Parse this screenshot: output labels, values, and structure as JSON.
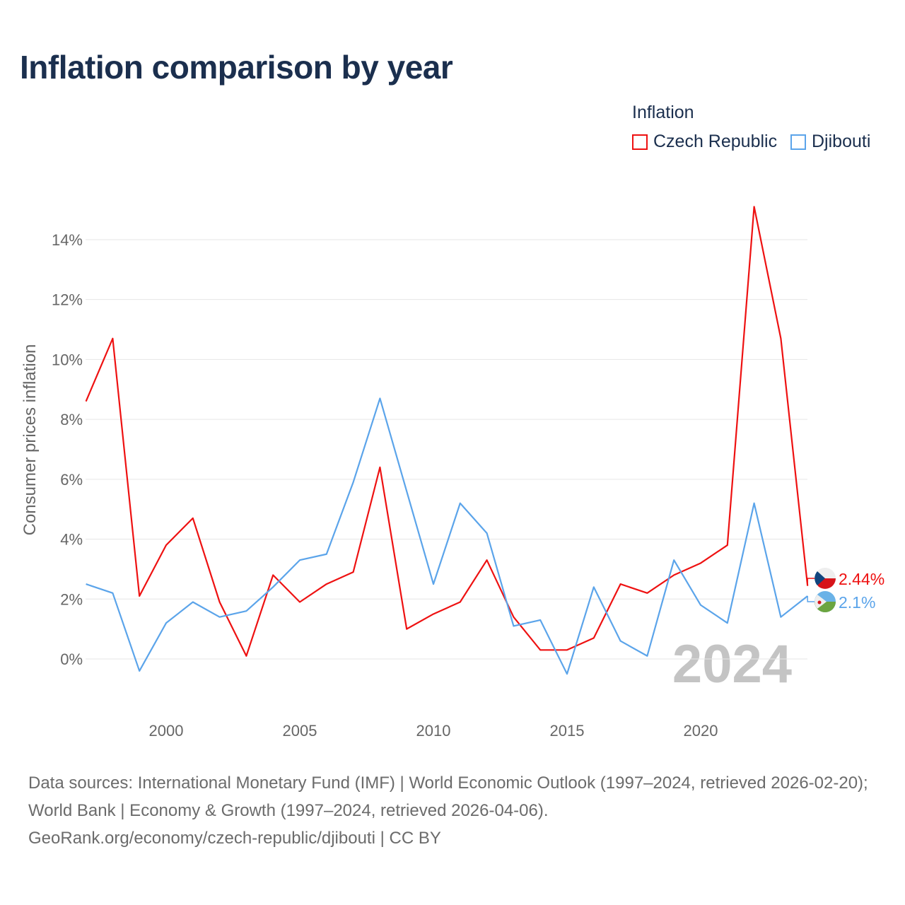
{
  "title": "Inflation comparison by year",
  "legend": {
    "title": "Inflation",
    "items": [
      {
        "label": "Czech Republic",
        "color": "#ee1111"
      },
      {
        "label": "Djibouti",
        "color": "#5ba4ea"
      }
    ]
  },
  "source": {
    "line1": "Data sources: International Monetary Fund (IMF) | World Economic Outlook (1997–2024, retrieved 2026-02-20); World Bank | Economy & Growth (1997–2024, retrieved 2026-04-06).",
    "line2": "GeoRank.org/economy/czech-republic/djibouti | CC BY"
  },
  "chart_data": {
    "type": "line",
    "title": "Inflation comparison by year",
    "ylabel": "Consumer prices inflation",
    "xlabel": "",
    "watermark": "2024",
    "x": [
      1997,
      1998,
      1999,
      2000,
      2001,
      2002,
      2003,
      2004,
      2005,
      2006,
      2007,
      2008,
      2009,
      2010,
      2011,
      2012,
      2013,
      2014,
      2015,
      2016,
      2017,
      2018,
      2019,
      2020,
      2021,
      2022,
      2023,
      2024
    ],
    "xticks": [
      2000,
      2005,
      2010,
      2015,
      2020
    ],
    "yticks": [
      0,
      2,
      4,
      6,
      8,
      10,
      12,
      14
    ],
    "ylim": [
      -1.5,
      15.5
    ],
    "xlim": [
      1997,
      2024
    ],
    "grid": true,
    "legend_position": "top-right",
    "series": [
      {
        "name": "Czech Republic",
        "color": "#ee1111",
        "end_label": "2.44%",
        "values": [
          8.6,
          10.7,
          2.1,
          3.8,
          4.7,
          1.9,
          0.1,
          2.8,
          1.9,
          2.5,
          2.9,
          6.4,
          1.0,
          1.5,
          1.9,
          3.3,
          1.4,
          0.3,
          0.3,
          0.7,
          2.5,
          2.2,
          2.8,
          3.2,
          3.8,
          15.1,
          10.7,
          2.44
        ]
      },
      {
        "name": "Djibouti",
        "color": "#5ba4ea",
        "end_label": "2.1%",
        "values": [
          2.5,
          2.2,
          -0.4,
          1.2,
          1.9,
          1.4,
          1.6,
          2.4,
          3.3,
          3.5,
          5.9,
          8.7,
          5.6,
          2.5,
          5.2,
          4.2,
          1.1,
          1.3,
          -0.5,
          2.4,
          0.6,
          0.1,
          3.3,
          1.8,
          1.2,
          5.2,
          1.4,
          2.1
        ]
      }
    ]
  }
}
